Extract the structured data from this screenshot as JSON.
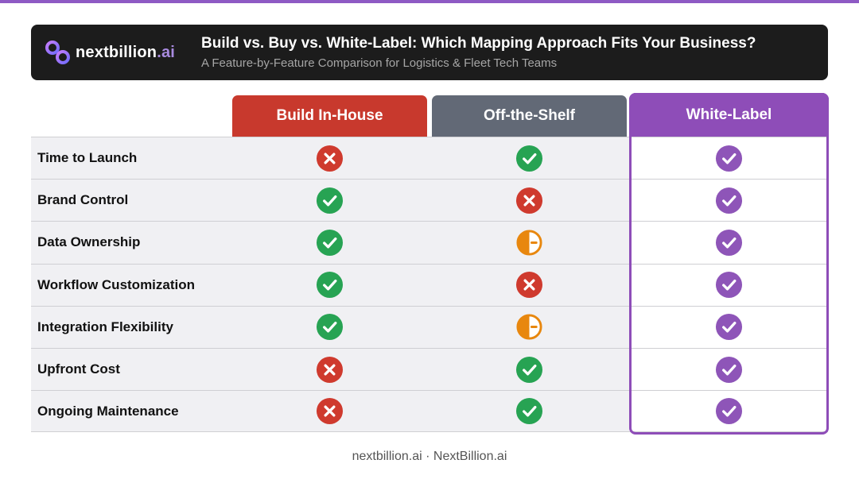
{
  "colors": {
    "accent": "#8e4db8",
    "build": "#c8392d",
    "shelf": "#626976",
    "yes": "#27a353",
    "no": "#cf3a2e",
    "partial": "#e8870e",
    "white_yes": "#8e55b8"
  },
  "header": {
    "logo_text": "nextbillion",
    "logo_suffix": ".ai",
    "logo_icon": "infinity-logo-icon",
    "title": "Build vs. Buy vs. White-Label: Which Mapping Approach Fits Your Business?",
    "subtitle": "A Feature-by-Feature Comparison for Logistics & Fleet Tech Teams"
  },
  "columns": [
    {
      "key": "build",
      "label": "Build In-House"
    },
    {
      "key": "shelf",
      "label": "Off-the-Shelf"
    },
    {
      "key": "white",
      "label": "White-Label"
    }
  ],
  "rows": [
    {
      "label": "Time to Launch",
      "build": "no",
      "shelf": "yes",
      "white": "yes"
    },
    {
      "label": "Brand Control",
      "build": "yes",
      "shelf": "no",
      "white": "yes"
    },
    {
      "label": "Data Ownership",
      "build": "yes",
      "shelf": "partial",
      "white": "yes"
    },
    {
      "label": "Workflow Customization",
      "build": "yes",
      "shelf": "no",
      "white": "yes"
    },
    {
      "label": "Integration Flexibility",
      "build": "yes",
      "shelf": "partial",
      "white": "yes"
    },
    {
      "label": "Upfront Cost",
      "build": "no",
      "shelf": "yes",
      "white": "yes"
    },
    {
      "label": "Ongoing Maintenance",
      "build": "no",
      "shelf": "yes",
      "white": "yes"
    }
  ],
  "footer": "nextbillion.ai · NextBillion.ai"
}
